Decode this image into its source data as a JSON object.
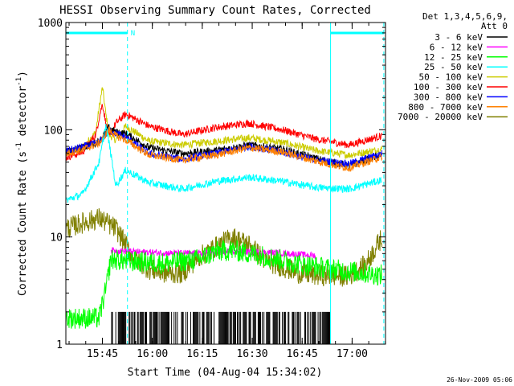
{
  "chart_data": {
    "type": "line",
    "title": "HESSI Observing Summary Count Rates, Corrected",
    "xlabel": "Start Time (04-Aug-04 15:34:02)",
    "ylabel_main": "Corrected Count Rate (s",
    "ylabel_sup1": "-1",
    "ylabel_mid": " detector",
    "ylabel_sup2": "-1",
    "ylabel_end": ")",
    "yscale": "log",
    "ylim": [
      1,
      1000
    ],
    "xlim_minutes": [
      0,
      96
    ],
    "x_unit": "minutes since 15:34:02",
    "y_ticks": [
      {
        "value": 1,
        "label": "1"
      },
      {
        "value": 10,
        "label": "10"
      },
      {
        "value": 100,
        "label": "100"
      },
      {
        "value": 1000,
        "label": "1000"
      }
    ],
    "x_ticks": [
      {
        "value": 10.97,
        "label": "15:45"
      },
      {
        "value": 25.97,
        "label": "16:00"
      },
      {
        "value": 40.97,
        "label": "16:15"
      },
      {
        "value": 55.97,
        "label": "16:30"
      },
      {
        "value": 70.97,
        "label": "16:45"
      },
      {
        "value": 85.97,
        "label": "17:00"
      }
    ],
    "legend_header": [
      "Det 1,3,4,5,6,9,",
      "Att 0"
    ],
    "legend_placement": "right, outside plot",
    "annotation_markers": [
      {
        "label": "N",
        "start": 0,
        "end": 18.5
      },
      {
        "label": "",
        "start": 79.5,
        "end": 95.5
      }
    ],
    "vertical_lines": [
      {
        "x": 18.5,
        "style": "dashed"
      },
      {
        "x": 79.5,
        "style": "solid"
      },
      {
        "x": 95.5,
        "style": "dashed"
      }
    ],
    "marker_color": "#00ffff",
    "timestamp": "26-Nov-2009 05:06",
    "series": [
      {
        "name": "3 - 6 keV",
        "color": "#000000",
        "x": [
          0,
          5,
          10,
          13,
          15,
          18,
          25,
          35,
          45,
          55,
          65,
          75,
          80,
          85,
          95
        ],
        "y": [
          62,
          68,
          78,
          105,
          95,
          92,
          68,
          60,
          64,
          72,
          66,
          54,
          50,
          46,
          58
        ]
      },
      {
        "name": "6 - 12 keV",
        "color": "#ff00ff",
        "x": [
          13.5,
          20,
          30,
          40,
          50,
          60,
          70,
          75
        ],
        "y": [
          7.5,
          7.3,
          7.1,
          7.0,
          7.3,
          7.2,
          6.9,
          6.7
        ]
      },
      {
        "name": "12 - 25 keV",
        "color": "#00ff00",
        "x": [
          0,
          10,
          11,
          12,
          13.5,
          20,
          30,
          40,
          45,
          50,
          60,
          70,
          80,
          95
        ],
        "y": [
          1.75,
          1.75,
          2.4,
          3.2,
          6.2,
          5.9,
          5.7,
          6.2,
          7.3,
          7.5,
          6.6,
          5.6,
          5.0,
          4.4
        ]
      },
      {
        "name": "25 - 50 keV",
        "color": "#00ffff",
        "x": [
          0,
          5,
          10,
          12,
          13,
          15,
          18,
          25,
          35,
          45,
          55,
          65,
          75,
          85,
          95
        ],
        "y": [
          22,
          25,
          50,
          110,
          75,
          30,
          42,
          32,
          28,
          33,
          36,
          33,
          29,
          28,
          34
        ]
      },
      {
        "name": "50 - 100 keV",
        "color": "#cccc00",
        "x": [
          0,
          5,
          9,
          10,
          11,
          12,
          13,
          15,
          18,
          25,
          35,
          45,
          55,
          65,
          75,
          85,
          95
        ],
        "y": [
          60,
          68,
          95,
          160,
          250,
          140,
          90,
          80,
          108,
          78,
          72,
          78,
          84,
          76,
          64,
          58,
          66
        ]
      },
      {
        "name": "100 - 300 keV",
        "color": "#ff0000",
        "x": [
          0,
          5,
          9,
          10,
          11,
          12,
          13,
          15,
          18,
          25,
          35,
          45,
          55,
          65,
          75,
          85,
          95
        ],
        "y": [
          55,
          62,
          90,
          130,
          175,
          115,
          85,
          115,
          140,
          108,
          90,
          105,
          115,
          100,
          82,
          72,
          88
        ]
      },
      {
        "name": "300 - 800 keV",
        "color": "#0000ff",
        "x": [
          0,
          10,
          13,
          18,
          25,
          35,
          45,
          55,
          65,
          75,
          85,
          95
        ],
        "y": [
          63,
          76,
          98,
          85,
          60,
          53,
          60,
          70,
          62,
          52,
          48,
          60
        ]
      },
      {
        "name": "800 - 7000 keV",
        "color": "#ff8000",
        "x": [
          0,
          5,
          10,
          13,
          15,
          18,
          25,
          35,
          45,
          55,
          65,
          75,
          80,
          85,
          95
        ],
        "y": [
          60,
          65,
          75,
          100,
          88,
          80,
          58,
          52,
          58,
          68,
          62,
          51,
          47,
          44,
          56
        ]
      },
      {
        "name": "7000 - 20000 keV",
        "color": "#808000",
        "x": [
          0,
          5,
          10,
          15,
          18,
          20,
          25,
          30,
          35,
          40,
          50,
          55,
          60,
          70,
          75,
          85,
          90,
          95
        ],
        "y": [
          12,
          13.5,
          15,
          12,
          8.5,
          6.5,
          5,
          4.6,
          4.6,
          6.5,
          10,
          8.5,
          6,
          4.6,
          4.4,
          4.3,
          5.5,
          10
        ]
      }
    ],
    "counts_3_6_low": {
      "description": "black spikes",
      "x_start": 13.5,
      "x_end": 79.5,
      "y_high": 2.0
    }
  }
}
